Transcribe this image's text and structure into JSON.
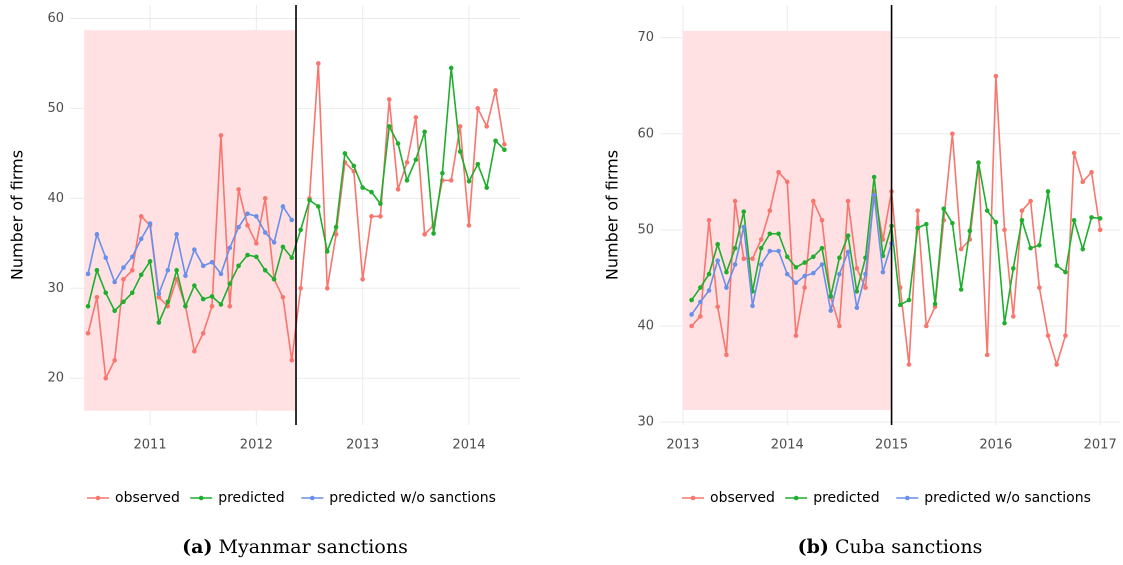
{
  "chart_data": [
    {
      "type": "line",
      "ylabel": "Number of firms",
      "caption_label": "(a)",
      "caption": "Myanmar sanctions",
      "x": [
        2010.417,
        2010.5,
        2010.583,
        2010.667,
        2010.75,
        2010.833,
        2010.917,
        2011,
        2011.083,
        2011.167,
        2011.25,
        2011.333,
        2011.417,
        2011.5,
        2011.583,
        2011.667,
        2011.75,
        2011.833,
        2011.917,
        2012,
        2012.083,
        2012.167,
        2012.25,
        2012.333,
        2012.417,
        2012.5,
        2012.583,
        2012.667,
        2012.75,
        2012.833,
        2012.917,
        2013,
        2013.083,
        2013.167,
        2013.25,
        2013.333,
        2013.417,
        2013.5,
        2013.583,
        2013.667,
        2013.75,
        2013.833,
        2013.917,
        2014,
        2014.083,
        2014.167,
        2014.25,
        2014.333
      ],
      "series": [
        {
          "name": "observed",
          "color": "#f8766d",
          "values": [
            25,
            29,
            20,
            22,
            31,
            32,
            38,
            37,
            29,
            28,
            31,
            28,
            23,
            25,
            28,
            47,
            28,
            41,
            37,
            35,
            40,
            31,
            29,
            22,
            30,
            40,
            55,
            30,
            36,
            44,
            43,
            31,
            38,
            38,
            51,
            41,
            44,
            49,
            36,
            37,
            42,
            42,
            48,
            37,
            50,
            48,
            52,
            46
          ]
        },
        {
          "name": "predicted",
          "color": "#1fae2e",
          "values": [
            28,
            32,
            29.5,
            27.5,
            28.5,
            29.5,
            31.5,
            33,
            26.2,
            28.5,
            32,
            28,
            30.3,
            28.8,
            29.1,
            28.2,
            30.5,
            32.5,
            33.7,
            33.5,
            32,
            31,
            34.6,
            33.4,
            36.5,
            39.8,
            39.1,
            34.1,
            36.8,
            45,
            43.6,
            41.2,
            40.7,
            39.4,
            48,
            46.1,
            42,
            44.3,
            47.4,
            36.1,
            42.8,
            54.5,
            45.2,
            41.9,
            43.8,
            41.2,
            46.4,
            45.4
          ]
        },
        {
          "name": "predicted w/o sanctions",
          "color": "#6a8fe8",
          "values": [
            31.6,
            36,
            33.4,
            30.7,
            32.3,
            33.5,
            35.5,
            37.2,
            29.4,
            32,
            36,
            31.4,
            34.3,
            32.5,
            32.9,
            31.6,
            34.5,
            36.8,
            38.3,
            38,
            36.2,
            35.1,
            39.1,
            37.6,
            null,
            null,
            null,
            null,
            null,
            null,
            null,
            null,
            null,
            null,
            null,
            null,
            null,
            null,
            null,
            null,
            null,
            null,
            null,
            null,
            null,
            null,
            null,
            null
          ]
        }
      ],
      "xlim": [
        2010.247,
        2014.48
      ],
      "ylim": [
        14.8,
        61.5
      ],
      "xticks": [
        2011,
        2012,
        2013,
        2014
      ],
      "yticks": [
        20,
        30,
        40,
        50,
        60
      ],
      "grid": true,
      "legend": "bottom",
      "vline": 2012.373,
      "shade": {
        "xlim": [
          2010.38,
          2012.373
        ],
        "ylim": [
          16.4,
          58.7
        ],
        "color": "#ffe1e4"
      }
    },
    {
      "type": "line",
      "ylabel": "Number of firms",
      "caption_label": "(b)",
      "caption": "Cuba sanctions",
      "x": [
        2013.083,
        2013.167,
        2013.25,
        2013.333,
        2013.417,
        2013.5,
        2013.583,
        2013.667,
        2013.75,
        2013.833,
        2013.917,
        2014,
        2014.083,
        2014.167,
        2014.25,
        2014.333,
        2014.417,
        2014.5,
        2014.583,
        2014.667,
        2014.75,
        2014.833,
        2014.917,
        2015,
        2015.083,
        2015.167,
        2015.25,
        2015.333,
        2015.417,
        2015.5,
        2015.583,
        2015.667,
        2015.75,
        2015.833,
        2015.917,
        2016,
        2016.083,
        2016.167,
        2016.25,
        2016.333,
        2016.417,
        2016.5,
        2016.583,
        2016.667,
        2016.75,
        2016.833,
        2016.917,
        2017
      ],
      "series": [
        {
          "name": "observed",
          "color": "#f8766d",
          "values": [
            40,
            41,
            51,
            42,
            37,
            53,
            47,
            47,
            49,
            52,
            56,
            55,
            39,
            44,
            53,
            51,
            43,
            40,
            53,
            46,
            44,
            54,
            49,
            54,
            44,
            36,
            52,
            40,
            42,
            51,
            60,
            48,
            49,
            57,
            37,
            66,
            50,
            41,
            52,
            53,
            44,
            39,
            36,
            39,
            58,
            55,
            56,
            50
          ]
        },
        {
          "name": "predicted",
          "color": "#1fae2e",
          "values": [
            42.7,
            44,
            45.4,
            48.5,
            45.6,
            48.1,
            51.9,
            43.6,
            48.1,
            49.6,
            49.6,
            47.2,
            46.1,
            46.6,
            47.2,
            48.1,
            43.1,
            47.1,
            49.4,
            43.6,
            47.1,
            55.5,
            47.3,
            50.4,
            42.2,
            42.7,
            50.2,
            50.6,
            42.3,
            52.2,
            50.7,
            43.8,
            49.9,
            57,
            52,
            50.8,
            40.3,
            46,
            51,
            48.1,
            48.4,
            54,
            46.3,
            45.6,
            51,
            48,
            51.3,
            51.2
          ]
        },
        {
          "name": "predicted w/o sanctions",
          "color": "#6a8fe8",
          "values": [
            41.2,
            42.5,
            43.7,
            46.8,
            44,
            46.4,
            50.3,
            42.1,
            46.4,
            47.8,
            47.8,
            45.4,
            44.5,
            45.2,
            45.5,
            46.4,
            41.6,
            45.4,
            47.7,
            41.9,
            45.4,
            53.6,
            45.6,
            48.6,
            null,
            null,
            null,
            null,
            null,
            null,
            null,
            null,
            null,
            null,
            null,
            null,
            null,
            null,
            null,
            null,
            null,
            null,
            null,
            null,
            null,
            null,
            null,
            null
          ]
        }
      ],
      "xlim": [
        2012.78,
        2017.19
      ],
      "ylim": [
        29.7,
        73.4
      ],
      "xticks": [
        2013,
        2014,
        2015,
        2016,
        2017
      ],
      "yticks": [
        30,
        40,
        50,
        60,
        70
      ],
      "grid": true,
      "legend": "bottom",
      "vline": 2015,
      "shade": {
        "xlim": [
          2013,
          2015
        ],
        "ylim": [
          31.25,
          70.7
        ],
        "color": "#ffe1e4"
      }
    }
  ]
}
